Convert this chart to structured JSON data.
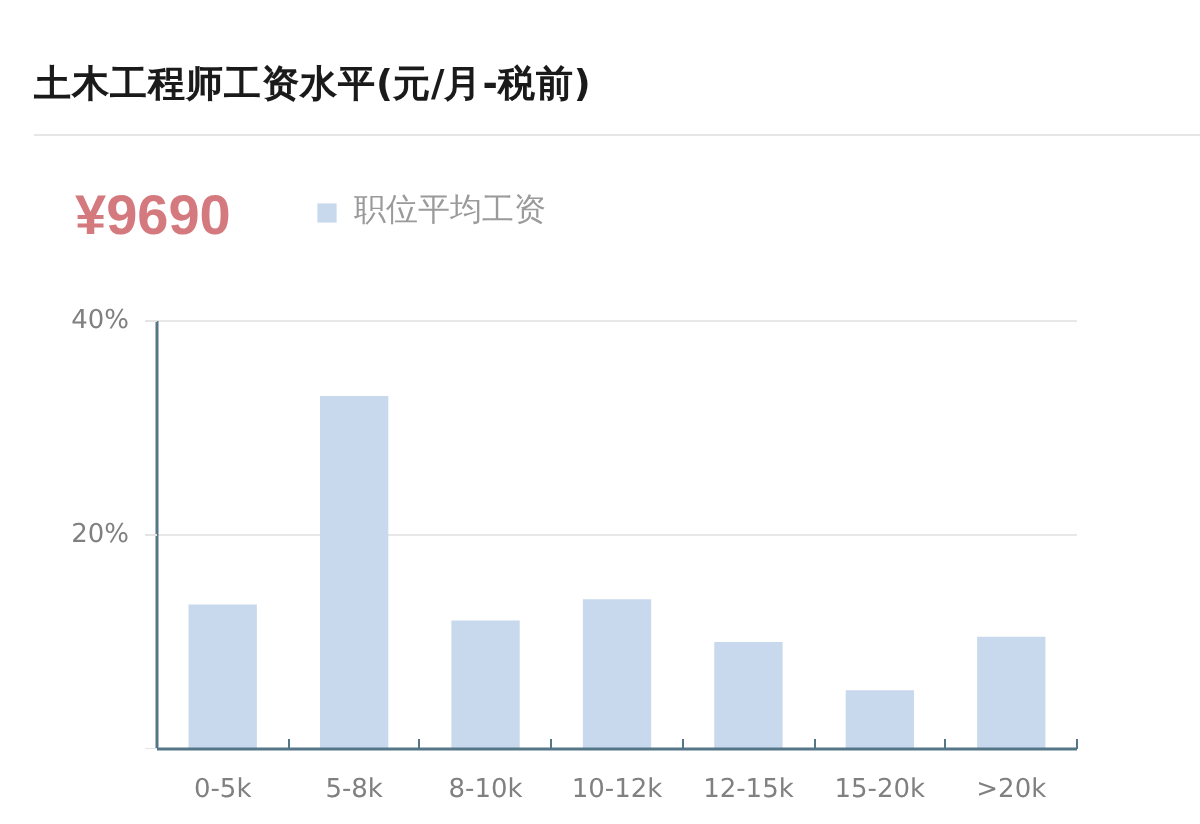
{
  "chart_data": {
    "type": "bar",
    "title": "土木工程师工资水平(元/月-税前)",
    "annotations": [
      "¥9690"
    ],
    "categories": [
      "0-5k",
      "5-8k",
      "8-10k",
      "10-12k",
      "12-15k",
      "15-20k",
      ">20k"
    ],
    "series": [
      {
        "name": "职位平均工资",
        "color": "#c8d9ee",
        "values": [
          13.5,
          33,
          12,
          14,
          10,
          5.5,
          10.5
        ]
      }
    ],
    "ylim": [
      0,
      40
    ],
    "yticks": [
      {
        "value": 0,
        "label": null
      },
      {
        "value": 20,
        "label": "20%"
      },
      {
        "value": 40,
        "label": "40%"
      }
    ],
    "grid": "y",
    "legend": "top left"
  }
}
